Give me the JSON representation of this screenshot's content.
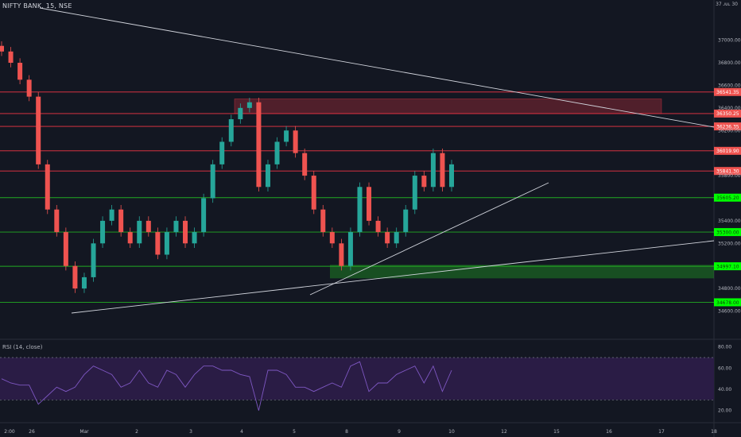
{
  "header": {
    "title": "NIFTY BANK, 15, NSE",
    "top_right": "37 ᴊᴜʟ 30"
  },
  "rsi": {
    "title": "RSI (14, close)",
    "ticks": [
      "80.00",
      "60.00",
      "40.00",
      "20.00"
    ],
    "upper_band": 70,
    "lower_band": 30
  },
  "colors": {
    "background": "#131722",
    "up": "#26a69a",
    "down": "#ef5350",
    "resistance": "#f23645",
    "support": "#22ab22",
    "support_label_bg": "#00ff00",
    "resistance_label_bg": "#ef5350",
    "rsi_line": "#7e57c2",
    "rsi_band_fill": "#2a1c45",
    "trendline": "#d1d4dc"
  },
  "chart_data": {
    "type": "candlestick",
    "x_tick_labels": [
      "2:00",
      "26",
      "Mar",
      "2",
      "3",
      "4",
      "5",
      "8",
      "9",
      "10",
      "12",
      "15",
      "16",
      "17",
      "18"
    ],
    "y_tick_labels": [
      "37000.00",
      "36800.00",
      "36600.00",
      "36400.00",
      "36200.00",
      "35800.00",
      "35400.00",
      "35200.00",
      "34800.00",
      "34600.00"
    ],
    "ylim": [
      34470,
      37300
    ],
    "resistance_levels": [
      "36541.35",
      "36350.25",
      "36236.35",
      "36019.90",
      "35841.30"
    ],
    "support_levels": [
      "35605.20",
      "35300.00",
      "34997.10",
      "34678.00"
    ],
    "zones": [
      {
        "type": "supply",
        "from": 36350,
        "to": 36480
      },
      {
        "type": "demand",
        "from": 34890,
        "to": 35010
      }
    ],
    "candles_close_path": [
      36900,
      36800,
      36650,
      36500,
      35900,
      35500,
      35300,
      35000,
      34800,
      34900,
      35200,
      35400,
      35500,
      35300,
      35200,
      35400,
      35300,
      35100,
      35300,
      35400,
      35200,
      35300,
      35600,
      35900,
      36100,
      36300,
      36400,
      36450,
      35700,
      35900,
      36100,
      36200,
      36000,
      35800,
      35500,
      35300,
      35200,
      35000,
      35300,
      35700,
      35400,
      35300,
      35200,
      35300,
      35500,
      35800,
      35700,
      36000,
      35700,
      35900
    ]
  }
}
